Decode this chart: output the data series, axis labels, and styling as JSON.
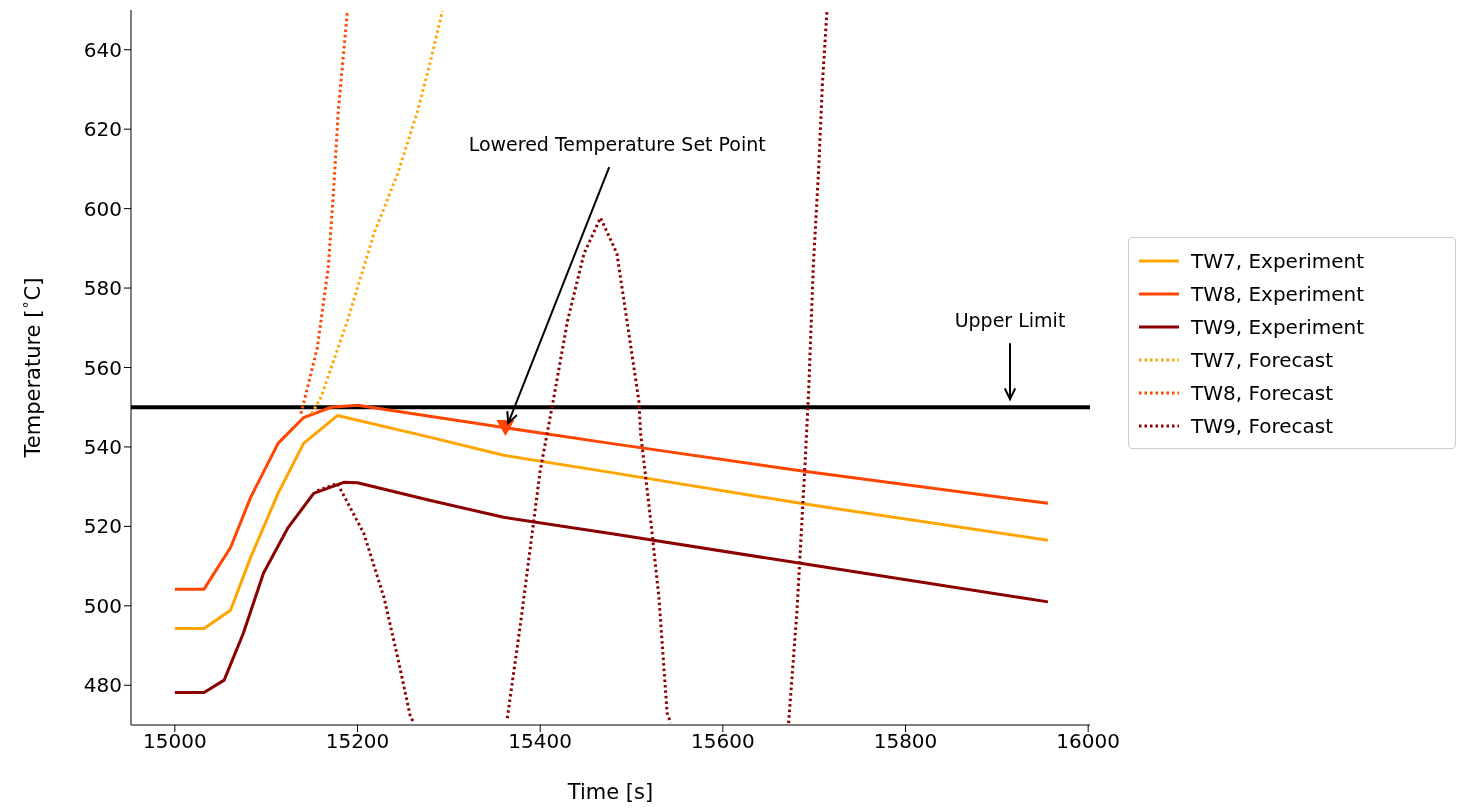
{
  "chart_data": {
    "type": "line",
    "xlabel": "Time [s]",
    "ylabel": "Temperature [$^{∘}$C]",
    "xlim": [
      14952,
      16002
    ],
    "ylim": [
      470,
      650
    ],
    "xticks": [
      15000,
      15200,
      15400,
      15600,
      15800,
      16000
    ],
    "yticks": [
      480,
      500,
      520,
      540,
      560,
      580,
      600,
      620,
      640
    ],
    "grid": false,
    "legend": "right",
    "marker": "none",
    "ref_lines": [
      {
        "axis": "y",
        "value": 550,
        "color": "#000000",
        "label": "Upper Limit"
      }
    ],
    "annotations": [
      {
        "text": "Lowered Temperature Set Point",
        "x": 15365,
        "y": 546
      }
    ],
    "series": [
      {
        "name": "TW7, Experiment",
        "color": "#ffa500",
        "line_style": "solid",
        "x": [
          15000,
          15032,
          15061,
          15083,
          15113,
          15141,
          15178,
          15280,
          15360,
          15477,
          15685,
          15956
        ],
        "values": [
          494.3,
          494.3,
          498.9,
          512.2,
          528.3,
          540.9,
          547.9,
          542.4,
          537.9,
          533.6,
          525.8,
          516.5
        ]
      },
      {
        "name": "TW8, Experiment",
        "color": "#ff4500",
        "line_style": "solid",
        "x": [
          15000,
          15032,
          15061,
          15083,
          15113,
          15141,
          15171,
          15200,
          15360,
          15477,
          15685,
          15956
        ],
        "values": [
          504.2,
          504.2,
          514.7,
          527.3,
          540.9,
          547.4,
          550,
          550.5,
          544.9,
          540.9,
          534,
          525.8
        ]
      },
      {
        "name": "TW9, Experiment",
        "color": "#8b0000",
        "line_style": "solid",
        "x": [
          15000,
          15032,
          15054,
          15075,
          15097,
          15124,
          15152,
          15185,
          15200,
          15280,
          15360,
          15477,
          15685,
          15956
        ],
        "values": [
          478.2,
          478.2,
          481.3,
          493.1,
          508.2,
          519.7,
          528.3,
          531.1,
          531,
          526.5,
          522.3,
          518.2,
          510.7,
          501
        ]
      },
      {
        "name": "TW7, Forecast",
        "color": "#ffa500",
        "line_style": "dotted",
        "x": [
          15150,
          15160,
          15189,
          15218,
          15244,
          15266,
          15280,
          15293
        ],
        "values": [
          548.4,
          552.5,
          571.8,
          593.7,
          608.8,
          624.7,
          637.2,
          649.8
        ]
      },
      {
        "name": "TW8, Forecast",
        "color": "#ff4500",
        "line_style": "dotted",
        "x": [
          15138,
          15141,
          15156,
          15168,
          15174,
          15179,
          15189
        ],
        "values": [
          548.4,
          551,
          565,
          585.2,
          605.3,
          624.7,
          649.8
        ]
      },
      {
        "name": "TW9, Forecast",
        "color": "#8b0000",
        "line_style": "dotted",
        "x": [
          15156,
          15178,
          15207,
          15229,
          15244,
          15258,
          15262,
          15300,
          15364,
          15379,
          15400,
          15413,
          15430,
          15448,
          15466,
          15484,
          15495,
          15508,
          15510,
          15521,
          15530,
          15539,
          15543,
          15600,
          15672,
          15681,
          15685,
          15690,
          15694,
          15699,
          15705,
          15709,
          15714
        ],
        "values": [
          529,
          530.8,
          518.2,
          502.1,
          487,
          472,
          470.5,
          null,
          471.7,
          496.4,
          534,
          550,
          571.8,
          588.7,
          597.7,
          588.7,
          571.8,
          551.7,
          543.4,
          521.5,
          502.1,
          473,
          470.5,
          null,
          470.5,
          498.1,
          514.7,
          535.8,
          554.2,
          585.2,
          610.3,
          631.4,
          649.8
        ]
      },
      {
        "type": "scatter",
        "marker": "triangle",
        "color": "#ff4500",
        "x": [
          15362
        ],
        "values": [
          545
        ]
      }
    ]
  }
}
